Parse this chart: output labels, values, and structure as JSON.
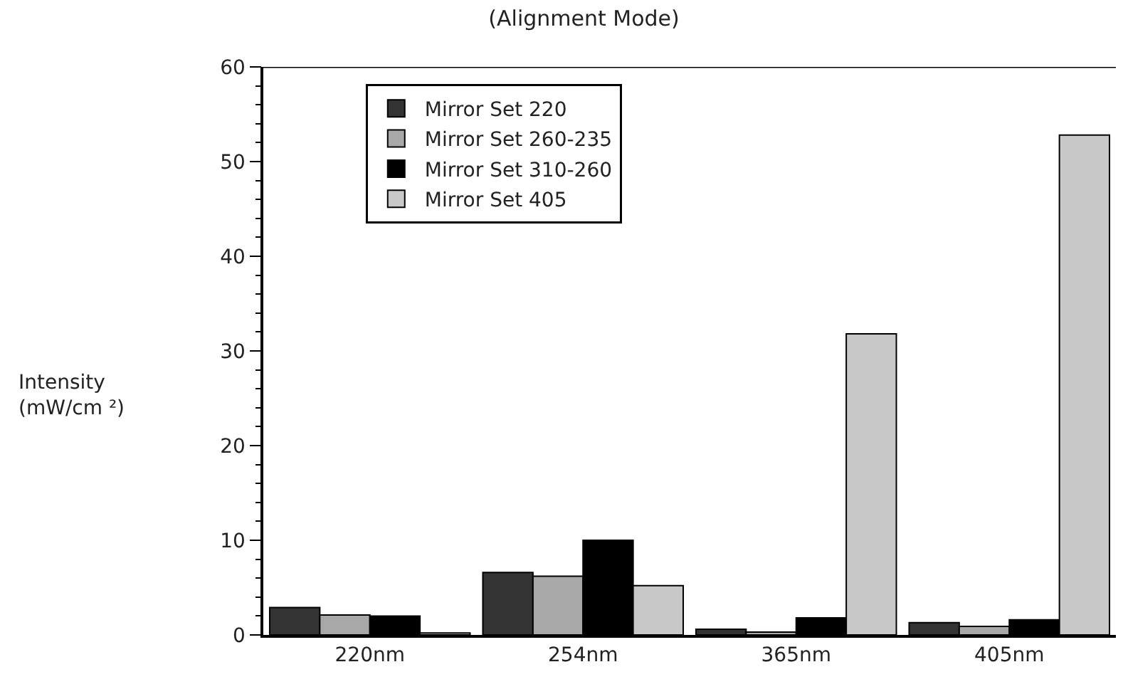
{
  "chart_data": {
    "type": "bar",
    "title": "(Alignment Mode)",
    "ylabel": "Intensity\n(mW/cm ²)",
    "categories": [
      "220nm",
      "254nm",
      "365nm",
      "405nm"
    ],
    "series": [
      {
        "name": "Mirror Set 220",
        "color": "#333333",
        "values": [
          2.9,
          6.6,
          0.6,
          1.3
        ]
      },
      {
        "name": "Mirror Set 260-235",
        "color": "#a8a8a8",
        "values": [
          2.1,
          6.2,
          0.3,
          0.9
        ]
      },
      {
        "name": "Mirror Set 310-260",
        "color": "#000000",
        "values": [
          2.0,
          10.0,
          1.8,
          1.6
        ]
      },
      {
        "name": "Mirror Set 405",
        "color": "#c8c8c8",
        "values": [
          0.2,
          5.2,
          31.8,
          52.8
        ]
      }
    ],
    "ylim": [
      0,
      60
    ],
    "yticks": [
      0,
      10,
      20,
      30,
      40,
      50,
      60
    ],
    "legend": "top left"
  }
}
